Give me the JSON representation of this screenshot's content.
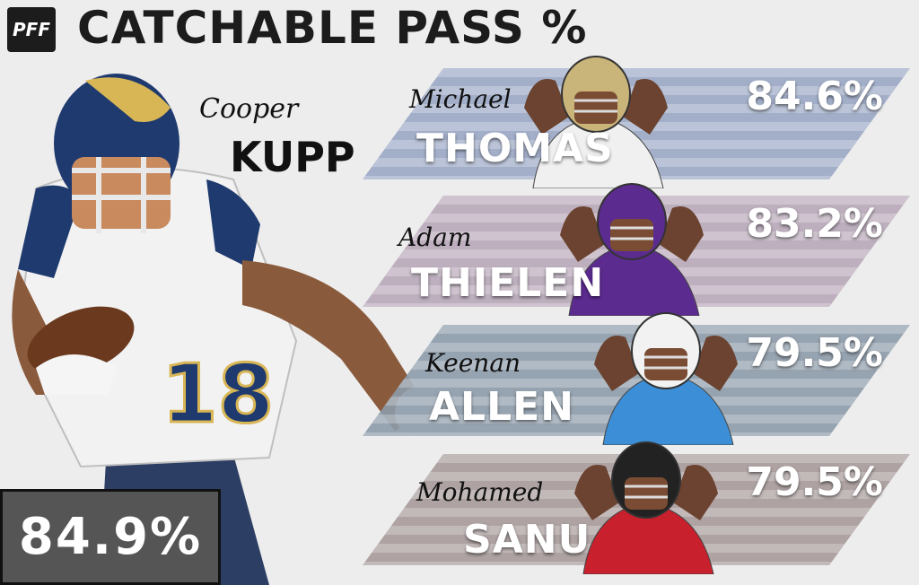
{
  "header": {
    "logo_text": "PFF",
    "title": "CATCHABLE PASS %"
  },
  "feature": {
    "first_name": "Cooper",
    "last_name": "KUPP",
    "value": "84.9%",
    "jersey_number": "18",
    "team_colors": {
      "primary": "#1f3a6e",
      "secondary": "#d8b656",
      "jersey": "#f2f2f2"
    }
  },
  "rows": [
    {
      "first_name": "Michael",
      "last_name": "THOMAS",
      "value": "84.6%",
      "band_color": "#9aa7c4",
      "jersey_color": "#f0f0f0",
      "helmet_color": "#c9b47a"
    },
    {
      "first_name": "Adam",
      "last_name": "THIELEN",
      "value": "83.2%",
      "band_color": "#b7a7b8",
      "jersey_color": "#5b2b8f",
      "helmet_color": "#5b2b8f"
    },
    {
      "first_name": "Keenan",
      "last_name": "ALLEN",
      "value": "79.5%",
      "band_color": "#8c9aa8",
      "jersey_color": "#3c8fd6",
      "helmet_color": "#f2f2f2"
    },
    {
      "first_name": "Mohamed",
      "last_name": "SANU",
      "value": "79.5%",
      "band_color": "#a69999",
      "jersey_color": "#c8202c",
      "helmet_color": "#222222"
    }
  ]
}
